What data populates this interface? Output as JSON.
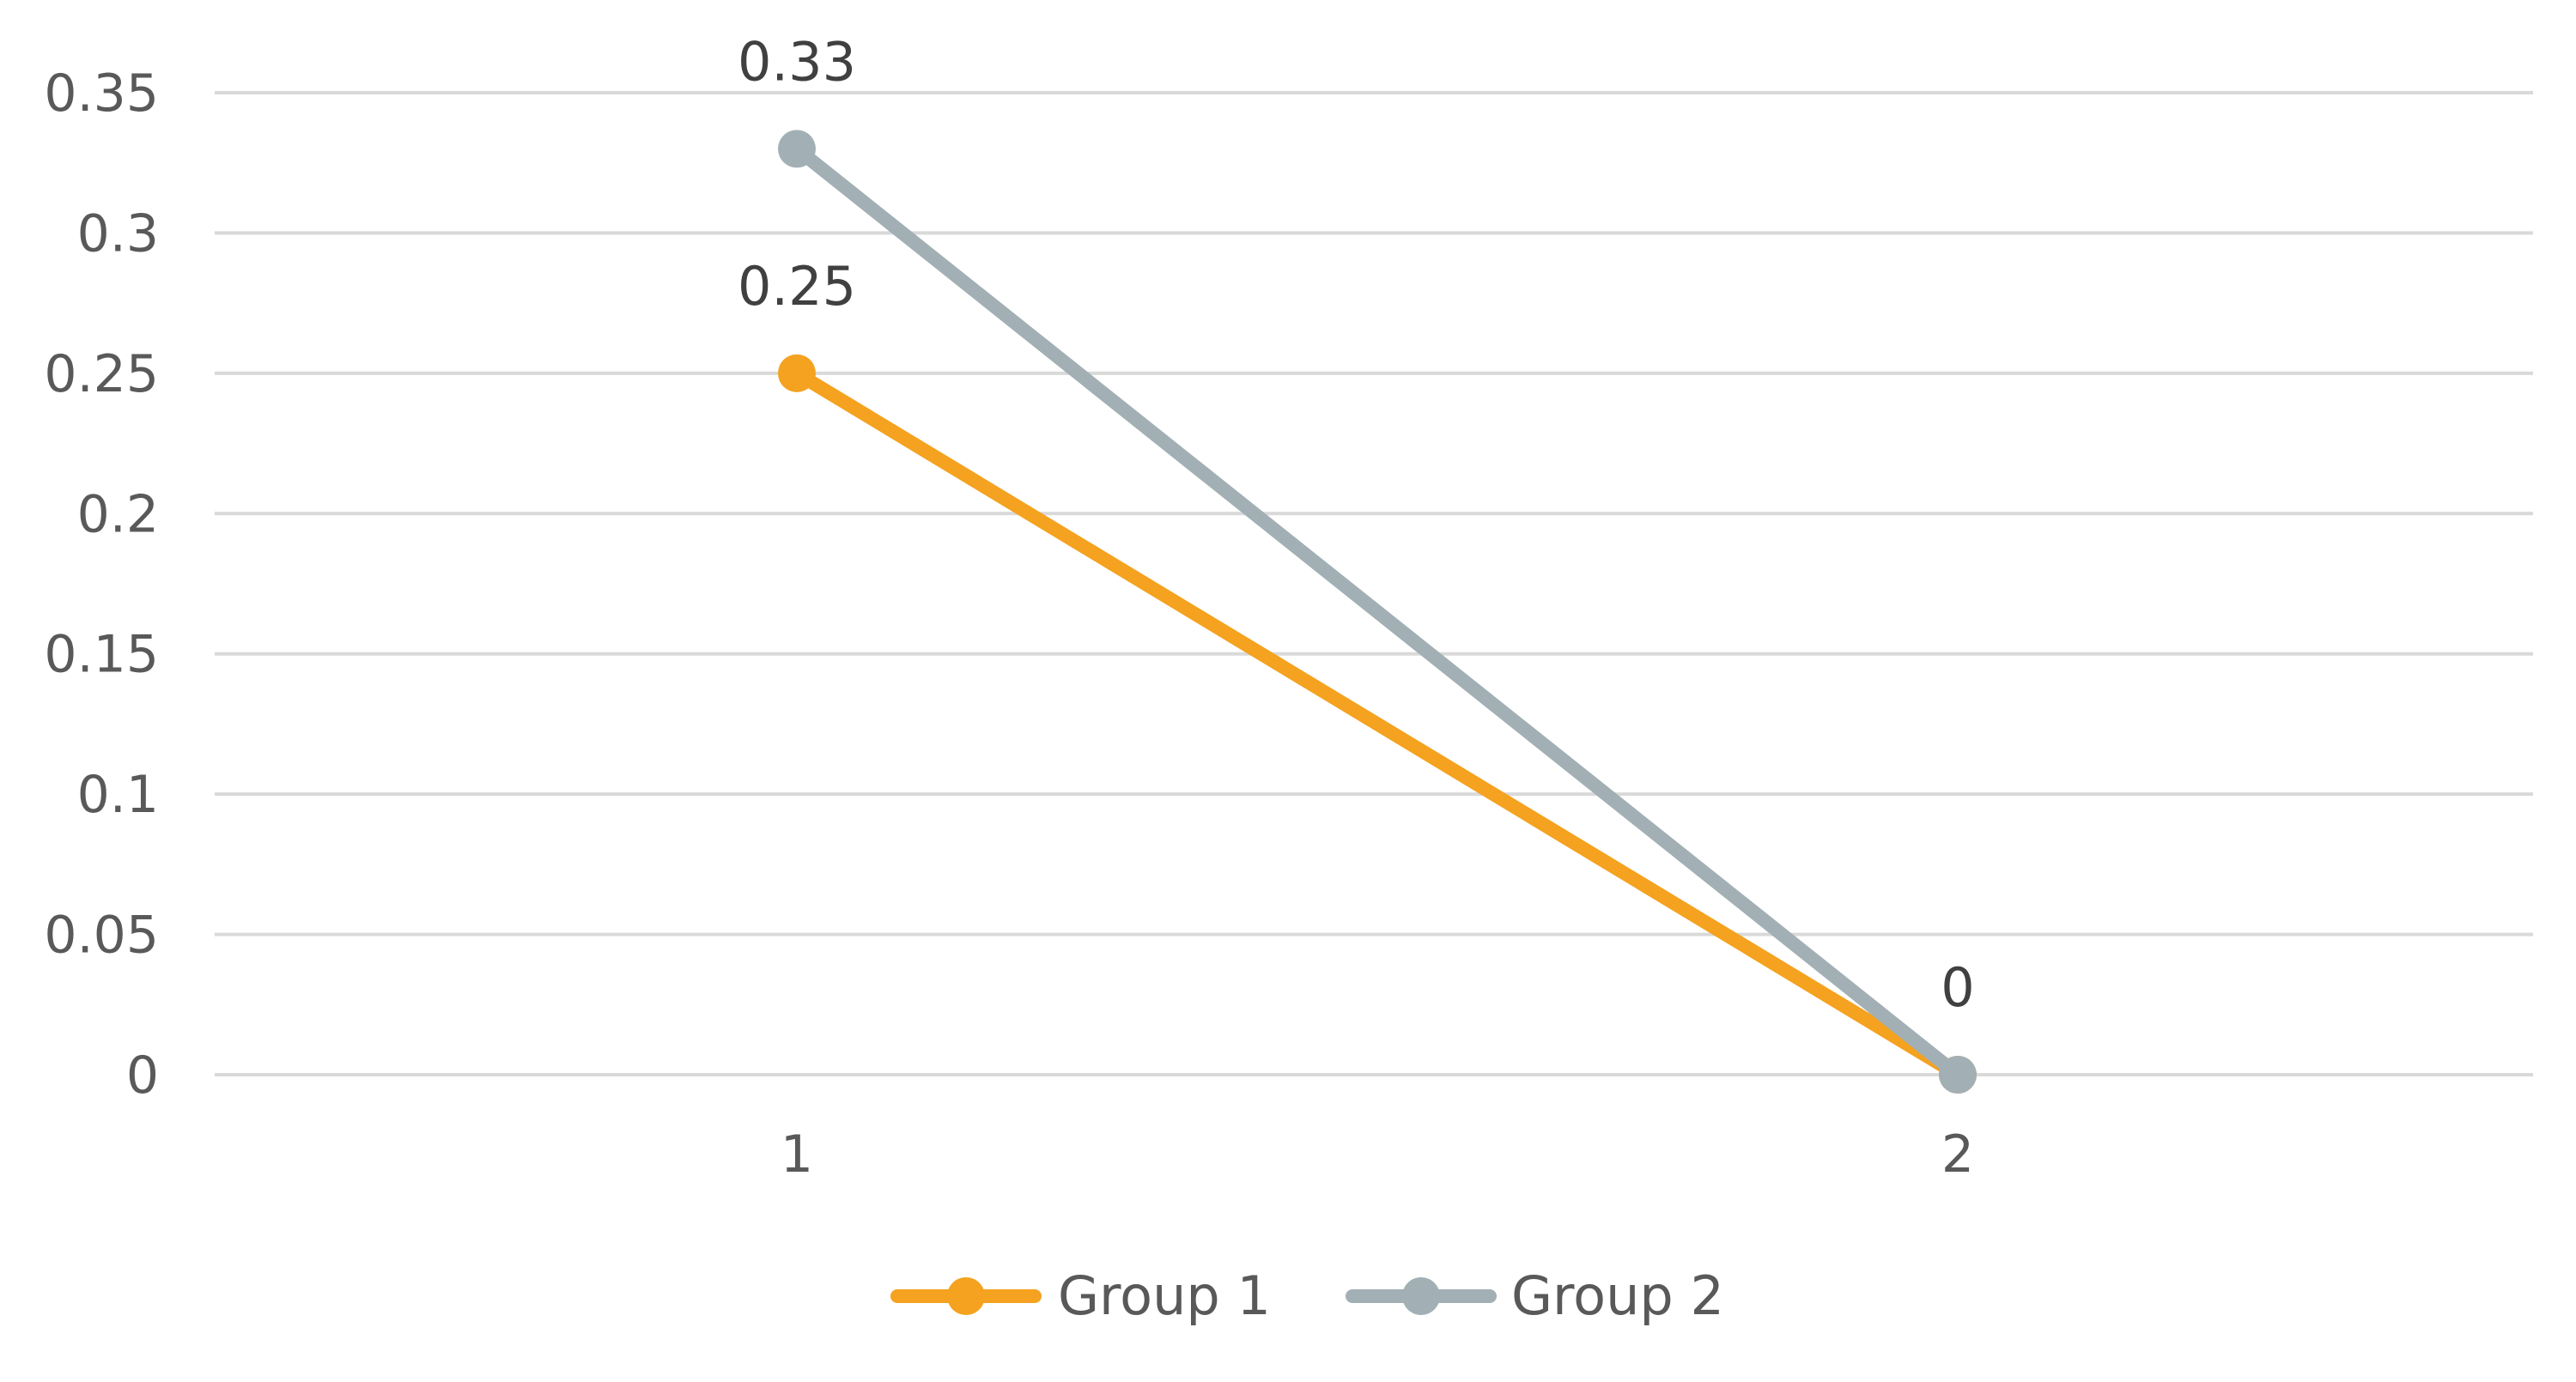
{
  "chart_data": {
    "type": "line",
    "title": "",
    "xlabel": "",
    "ylabel": "",
    "categories": [
      "1",
      "2"
    ],
    "ylim": [
      0,
      0.35
    ],
    "y_ticks": [
      "0",
      "0.05",
      "0.1",
      "0.15",
      "0.2",
      "0.25",
      "0.3",
      "0.35"
    ],
    "grid": true,
    "legend_position": "bottom",
    "series": [
      {
        "name": "Group 1",
        "values": [
          0.25,
          0
        ],
        "color": "#f4a21f",
        "data_labels": [
          "0.25",
          ""
        ]
      },
      {
        "name": "Group 2",
        "values": [
          0.33,
          0
        ],
        "color": "#a2b0b5",
        "data_labels": [
          "0.33",
          "0"
        ]
      }
    ]
  }
}
